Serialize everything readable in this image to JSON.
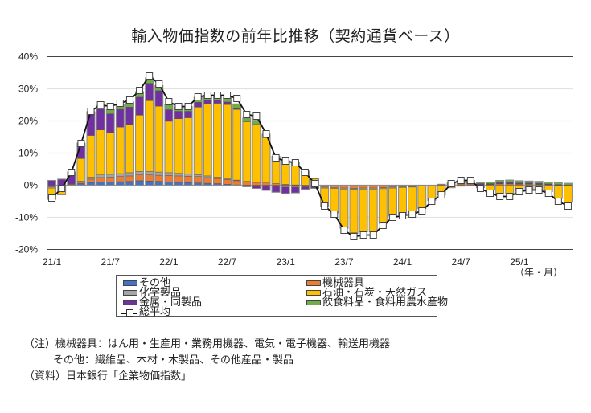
{
  "chart_data": {
    "type": "bar",
    "stacked": true,
    "title": "輸入物価指数の前年比推移（契約通貨ベース）",
    "xlabel": "（年・月）",
    "ylabel": "",
    "ylim": [
      -20,
      40
    ],
    "yticks": [
      -20,
      -10,
      0,
      10,
      20,
      30,
      40
    ],
    "ytick_labels": [
      "-20%",
      "-10%",
      "0%",
      "10%",
      "20%",
      "30%",
      "40%"
    ],
    "xtick_labels": [
      "21/1",
      "21/7",
      "22/1",
      "22/7",
      "23/1",
      "23/7",
      "24/1",
      "24/7",
      "25/1"
    ],
    "xtick_index": [
      0,
      6,
      12,
      18,
      24,
      30,
      36,
      42,
      48
    ],
    "grid": true,
    "legend_position": "bottom",
    "categories": [
      "21/1",
      "21/2",
      "21/3",
      "21/4",
      "21/5",
      "21/6",
      "21/7",
      "21/8",
      "21/9",
      "21/10",
      "21/11",
      "21/12",
      "22/1",
      "22/2",
      "22/3",
      "22/4",
      "22/5",
      "22/6",
      "22/7",
      "22/8",
      "22/9",
      "22/10",
      "22/11",
      "22/12",
      "23/1",
      "23/2",
      "23/3",
      "23/4",
      "23/5",
      "23/6",
      "23/7",
      "23/8",
      "23/9",
      "23/10",
      "23/11",
      "23/12",
      "24/1",
      "24/2",
      "24/3",
      "24/4",
      "24/5",
      "24/6",
      "24/7",
      "24/8",
      "24/9",
      "24/10",
      "24/11",
      "24/12",
      "25/1",
      "25/2",
      "25/3",
      "25/4",
      "25/5",
      "25/6"
    ],
    "series": [
      {
        "name": "その他",
        "color": "#4472c4",
        "values": [
          -0.3,
          -0.2,
          0.2,
          0.6,
          0.9,
          1.0,
          1.0,
          1.1,
          1.2,
          1.4,
          1.3,
          1.2,
          1.0,
          0.9,
          0.8,
          0.7,
          0.6,
          0.5,
          0.3,
          0.1,
          -0.1,
          -0.2,
          -0.2,
          -0.2,
          -0.3,
          -0.3,
          -0.2,
          -0.2,
          -0.2,
          -0.2,
          -0.3,
          -0.3,
          -0.3,
          -0.3,
          -0.3,
          -0.2,
          -0.2,
          -0.2,
          -0.1,
          -0.1,
          0,
          0,
          0.1,
          0.1,
          0,
          0,
          0,
          0,
          0,
          0,
          0,
          0,
          0,
          0
        ]
      },
      {
        "name": "機械器具",
        "color": "#ed7d31",
        "values": [
          -0.2,
          -0.1,
          0.2,
          0.4,
          1.0,
          1.4,
          1.5,
          1.6,
          1.7,
          1.8,
          1.9,
          1.9,
          2.0,
          2.0,
          2.0,
          2.0,
          1.8,
          1.6,
          1.5,
          1.3,
          1.1,
          0.9,
          0.7,
          0.5,
          0.3,
          0.1,
          0,
          -0.2,
          -0.4,
          -0.5,
          -0.6,
          -0.7,
          -0.6,
          -0.6,
          -0.5,
          -0.4,
          -0.3,
          -0.2,
          -0.1,
          0,
          0.1,
          0.2,
          0.3,
          0.3,
          0.2,
          0.2,
          0.4,
          0.4,
          0.3,
          0.3,
          0.2,
          0.1,
          -0.1,
          -0.2
        ]
      },
      {
        "name": "化学製品",
        "color": "#a5a5a5",
        "values": [
          -0.4,
          -0.2,
          0.1,
          0.3,
          0.6,
          0.8,
          0.9,
          0.9,
          1.0,
          1.1,
          1.1,
          1.0,
          0.9,
          0.8,
          0.7,
          0.6,
          0.5,
          0.4,
          0.3,
          0.2,
          0.1,
          0,
          -0.1,
          -0.2,
          -0.3,
          -0.3,
          -0.3,
          -0.3,
          -0.3,
          -0.3,
          -0.3,
          -0.3,
          -0.3,
          -0.3,
          -0.3,
          -0.3,
          -0.2,
          -0.2,
          -0.1,
          -0.1,
          0,
          0,
          0,
          0,
          0,
          0.1,
          0.1,
          0.1,
          0.1,
          0.1,
          0.1,
          0,
          0,
          -0.1
        ]
      },
      {
        "name": "石油・石炭・天然ガス",
        "color": "#ffc000",
        "values": [
          -3.5,
          -2.5,
          0,
          7.0,
          13.0,
          14.0,
          13.0,
          14.5,
          15.0,
          17.5,
          22.0,
          20.5,
          16.0,
          17.0,
          17.5,
          21.0,
          22.5,
          23.0,
          23.0,
          22.0,
          18.5,
          18.0,
          14.0,
          7.5,
          6.5,
          6.5,
          4.0,
          2.0,
          -5.5,
          -7.5,
          -12.0,
          -13.5,
          -13.0,
          -13.0,
          -10.5,
          -8.5,
          -8.2,
          -7.8,
          -7.0,
          -4.5,
          -3.0,
          -0.8,
          -0.3,
          -0.2,
          -0.8,
          -1.5,
          -2.5,
          -2.8,
          -1.8,
          -1.5,
          -1.5,
          -2.0,
          -4.0,
          -5.0
        ]
      },
      {
        "name": "金属・同製品",
        "color": "#7030a0",
        "values": [
          1.4,
          1.8,
          3.4,
          4.5,
          6.8,
          6.5,
          5.8,
          5.5,
          5.4,
          5.6,
          5.4,
          4.8,
          3.6,
          2.3,
          2.0,
          1.5,
          1.0,
          1.0,
          0.8,
          0.2,
          -0.4,
          -0.8,
          -1.3,
          -1.8,
          -2.0,
          -1.8,
          -0.8,
          -0.3,
          -0.1,
          0,
          0,
          0,
          0,
          0,
          0,
          0,
          0,
          0,
          0,
          0,
          0.1,
          0.3,
          0.8,
          0.8,
          0.3,
          0.2,
          0.3,
          0.3,
          0.3,
          0.3,
          0.3,
          0.3,
          0.2,
          0.1
        ]
      },
      {
        "name": "飲食料品・食料用農水産物",
        "color": "#70ad47",
        "values": [
          0.1,
          0.1,
          0.2,
          0.3,
          0.6,
          1.1,
          1.3,
          1.5,
          1.6,
          1.7,
          1.7,
          1.6,
          1.5,
          1.4,
          1.5,
          1.6,
          1.6,
          1.5,
          1.5,
          1.5,
          1.2,
          1.3,
          1.2,
          1.0,
          0.8,
          0.7,
          0.4,
          0.2,
          0,
          -0.1,
          -0.2,
          -0.2,
          -0.3,
          -0.3,
          -0.3,
          -0.2,
          -0.1,
          0,
          0,
          0,
          0.1,
          0.2,
          0.3,
          0.3,
          0.4,
          0.5,
          0.7,
          0.8,
          0.7,
          0.6,
          0.6,
          0.6,
          0.6,
          0.5
        ]
      }
    ],
    "line_series": {
      "name": "総平均",
      "values": [
        -4.0,
        -1.0,
        4.0,
        13.0,
        23.0,
        25.0,
        24.5,
        25.5,
        26.5,
        29.5,
        34.0,
        31.5,
        26.0,
        24.5,
        24.5,
        27.5,
        28.0,
        28.0,
        28.0,
        27.0,
        22.0,
        21.5,
        16.0,
        8.5,
        7.5,
        7.0,
        4.0,
        0.5,
        -6.5,
        -9.0,
        -14.0,
        -16.0,
        -15.5,
        -15.5,
        -12.5,
        -10.0,
        -9.5,
        -9.0,
        -8.0,
        -5.0,
        -3.0,
        0.5,
        1.5,
        1.5,
        -1.0,
        -2.5,
        -3.5,
        -3.5,
        -2.0,
        -1.5,
        -1.5,
        -2.5,
        -5.0,
        -6.5
      ]
    }
  },
  "legend": {
    "items": [
      {
        "label": "その他",
        "color": "#4472c4"
      },
      {
        "label": "機械器具",
        "color": "#ed7d31"
      },
      {
        "label": "化学製品",
        "color": "#a5a5a5"
      },
      {
        "label": "石油・石炭・天然ガス",
        "color": "#ffc000"
      },
      {
        "label": "金属・同製品",
        "color": "#7030a0"
      },
      {
        "label": "飲食料品・食料用農水産物",
        "color": "#70ad47"
      },
      {
        "label": "総平均"
      }
    ]
  },
  "notes": {
    "line1": "（注）機械器具：はん用・生産用・業務用機器、電気・電子機器、輸送用機器",
    "line2": "その他：繊維品、木材・木製品、その他産品・製品",
    "line3": "（資料）日本銀行「企業物価指数」"
  }
}
